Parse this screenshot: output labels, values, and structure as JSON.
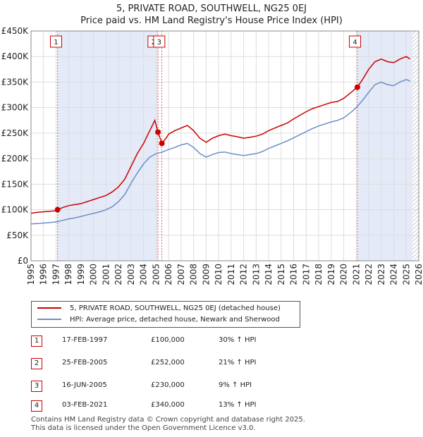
{
  "colors": {
    "price_line": "#cc0000",
    "hpi_line": "#6a8fc8",
    "shade": "#e4eaf7",
    "vline": "#e06060",
    "grid": "#dddddd"
  },
  "chart_data": {
    "type": "line",
    "title": "5, PRIVATE ROAD, SOUTHWELL, NG25 0EJ",
    "subtitle": "Price paid vs. HM Land Registry's House Price Index (HPI)",
    "xlim": [
      1995,
      2026
    ],
    "ylim": [
      0,
      450000
    ],
    "y_ticks": [
      {
        "value": 0,
        "label": "£0"
      },
      {
        "value": 50000,
        "label": "£50K"
      },
      {
        "value": 100000,
        "label": "£100K"
      },
      {
        "value": 150000,
        "label": "£150K"
      },
      {
        "value": 200000,
        "label": "£200K"
      },
      {
        "value": 250000,
        "label": "£250K"
      },
      {
        "value": 300000,
        "label": "£300K"
      },
      {
        "value": 350000,
        "label": "£350K"
      },
      {
        "value": 400000,
        "label": "£400K"
      },
      {
        "value": 450000,
        "label": "£450K"
      }
    ],
    "x_ticks": [
      "1995",
      "1996",
      "1997",
      "1998",
      "1999",
      "2000",
      "2001",
      "2002",
      "2003",
      "2004",
      "2005",
      "2006",
      "2007",
      "2008",
      "2009",
      "2010",
      "2011",
      "2012",
      "2013",
      "2014",
      "2015",
      "2016",
      "2017",
      "2018",
      "2019",
      "2020",
      "2021",
      "2022",
      "2023",
      "2024",
      "2025",
      "2026"
    ],
    "shaded_spans": [
      [
        1997.12,
        2005.15
      ],
      [
        2021.09,
        2025.5
      ]
    ],
    "hatched_after": 2025.5,
    "series": [
      {
        "name": "5, PRIVATE ROAD, SOUTHWELL, NG25 0EJ (detached house)",
        "points": [
          [
            1995,
            93000
          ],
          [
            1995.5,
            95000
          ],
          [
            1996,
            96000
          ],
          [
            1996.5,
            97000
          ],
          [
            1997,
            98000
          ],
          [
            1997.12,
            100000
          ],
          [
            1997.5,
            104000
          ],
          [
            1998,
            108000
          ],
          [
            1998.5,
            110000
          ],
          [
            1999,
            112000
          ],
          [
            1999.5,
            116000
          ],
          [
            2000,
            120000
          ],
          [
            2000.5,
            124000
          ],
          [
            2001,
            128000
          ],
          [
            2001.5,
            135000
          ],
          [
            2002,
            145000
          ],
          [
            2002.5,
            160000
          ],
          [
            2003,
            185000
          ],
          [
            2003.5,
            210000
          ],
          [
            2004,
            230000
          ],
          [
            2004.5,
            255000
          ],
          [
            2004.9,
            275000
          ],
          [
            2005.15,
            252000
          ],
          [
            2005.46,
            230000
          ],
          [
            2005.8,
            240000
          ],
          [
            2006,
            248000
          ],
          [
            2006.5,
            255000
          ],
          [
            2007,
            260000
          ],
          [
            2007.5,
            265000
          ],
          [
            2008,
            255000
          ],
          [
            2008.5,
            240000
          ],
          [
            2009,
            232000
          ],
          [
            2009.5,
            240000
          ],
          [
            2010,
            245000
          ],
          [
            2010.5,
            248000
          ],
          [
            2011,
            245000
          ],
          [
            2011.5,
            243000
          ],
          [
            2012,
            240000
          ],
          [
            2012.5,
            242000
          ],
          [
            2013,
            244000
          ],
          [
            2013.5,
            248000
          ],
          [
            2014,
            255000
          ],
          [
            2014.5,
            260000
          ],
          [
            2015,
            265000
          ],
          [
            2015.5,
            270000
          ],
          [
            2016,
            278000
          ],
          [
            2016.5,
            285000
          ],
          [
            2017,
            292000
          ],
          [
            2017.5,
            298000
          ],
          [
            2018,
            302000
          ],
          [
            2018.5,
            306000
          ],
          [
            2019,
            310000
          ],
          [
            2019.5,
            312000
          ],
          [
            2020,
            318000
          ],
          [
            2020.5,
            328000
          ],
          [
            2021,
            338000
          ],
          [
            2021.09,
            340000
          ],
          [
            2021.5,
            355000
          ],
          [
            2022,
            375000
          ],
          [
            2022.5,
            390000
          ],
          [
            2023,
            395000
          ],
          [
            2023.5,
            390000
          ],
          [
            2024,
            388000
          ],
          [
            2024.5,
            395000
          ],
          [
            2025,
            400000
          ],
          [
            2025.3,
            395000
          ]
        ]
      },
      {
        "name": "HPI: Average price, detached house, Newark and Sherwood",
        "points": [
          [
            1995,
            72000
          ],
          [
            1995.5,
            73000
          ],
          [
            1996,
            74000
          ],
          [
            1996.5,
            75000
          ],
          [
            1997,
            76000
          ],
          [
            1997.5,
            79000
          ],
          [
            1998,
            82000
          ],
          [
            1998.5,
            84000
          ],
          [
            1999,
            87000
          ],
          [
            1999.5,
            90000
          ],
          [
            2000,
            93000
          ],
          [
            2000.5,
            96000
          ],
          [
            2001,
            100000
          ],
          [
            2001.5,
            106000
          ],
          [
            2002,
            116000
          ],
          [
            2002.5,
            130000
          ],
          [
            2003,
            152000
          ],
          [
            2003.5,
            172000
          ],
          [
            2004,
            190000
          ],
          [
            2004.5,
            203000
          ],
          [
            2005,
            210000
          ],
          [
            2005.5,
            213000
          ],
          [
            2006,
            218000
          ],
          [
            2006.5,
            222000
          ],
          [
            2007,
            227000
          ],
          [
            2007.5,
            230000
          ],
          [
            2008,
            222000
          ],
          [
            2008.5,
            210000
          ],
          [
            2009,
            203000
          ],
          [
            2009.5,
            208000
          ],
          [
            2010,
            212000
          ],
          [
            2010.5,
            213000
          ],
          [
            2011,
            210000
          ],
          [
            2011.5,
            208000
          ],
          [
            2012,
            206000
          ],
          [
            2012.5,
            208000
          ],
          [
            2013,
            210000
          ],
          [
            2013.5,
            214000
          ],
          [
            2014,
            220000
          ],
          [
            2014.5,
            225000
          ],
          [
            2015,
            230000
          ],
          [
            2015.5,
            235000
          ],
          [
            2016,
            241000
          ],
          [
            2016.5,
            247000
          ],
          [
            2017,
            253000
          ],
          [
            2017.5,
            259000
          ],
          [
            2018,
            264000
          ],
          [
            2018.5,
            268000
          ],
          [
            2019,
            272000
          ],
          [
            2019.5,
            275000
          ],
          [
            2020,
            280000
          ],
          [
            2020.5,
            289000
          ],
          [
            2021,
            300000
          ],
          [
            2021.5,
            314000
          ],
          [
            2022,
            330000
          ],
          [
            2022.5,
            345000
          ],
          [
            2023,
            350000
          ],
          [
            2023.5,
            345000
          ],
          [
            2024,
            343000
          ],
          [
            2024.5,
            350000
          ],
          [
            2025,
            355000
          ],
          [
            2025.3,
            352000
          ]
        ]
      }
    ],
    "sales": [
      {
        "id": "1",
        "x": 1997.12,
        "y": 100000,
        "badge_x": 1997.0,
        "dot": true
      },
      {
        "id": "2",
        "x": 2005.15,
        "y": 252000,
        "badge_x": 2004.8,
        "dot": true
      },
      {
        "id": "3",
        "x": 2005.46,
        "y": 230000,
        "badge_x": 2005.25,
        "dot": true
      },
      {
        "id": "4",
        "x": 2021.09,
        "y": 340000,
        "badge_x": 2020.9,
        "dot": true
      }
    ]
  },
  "legend": {
    "price_label": "5, PRIVATE ROAD, SOUTHWELL, NG25 0EJ (detached house)",
    "hpi_label": "HPI: Average price, detached house, Newark and Sherwood"
  },
  "transactions": [
    {
      "num": "1",
      "date": "17-FEB-1997",
      "price": "£100,000",
      "hpi": "30% ↑ HPI"
    },
    {
      "num": "2",
      "date": "25-FEB-2005",
      "price": "£252,000",
      "hpi": "21% ↑ HPI"
    },
    {
      "num": "3",
      "date": "16-JUN-2005",
      "price": "£230,000",
      "hpi": "9% ↑ HPI"
    },
    {
      "num": "4",
      "date": "03-FEB-2021",
      "price": "£340,000",
      "hpi": "13% ↑ HPI"
    }
  ],
  "footer": {
    "line1": "Contains HM Land Registry data © Crown copyright and database right 2025.",
    "line2": "This data is licensed under the Open Government Licence v3.0."
  }
}
